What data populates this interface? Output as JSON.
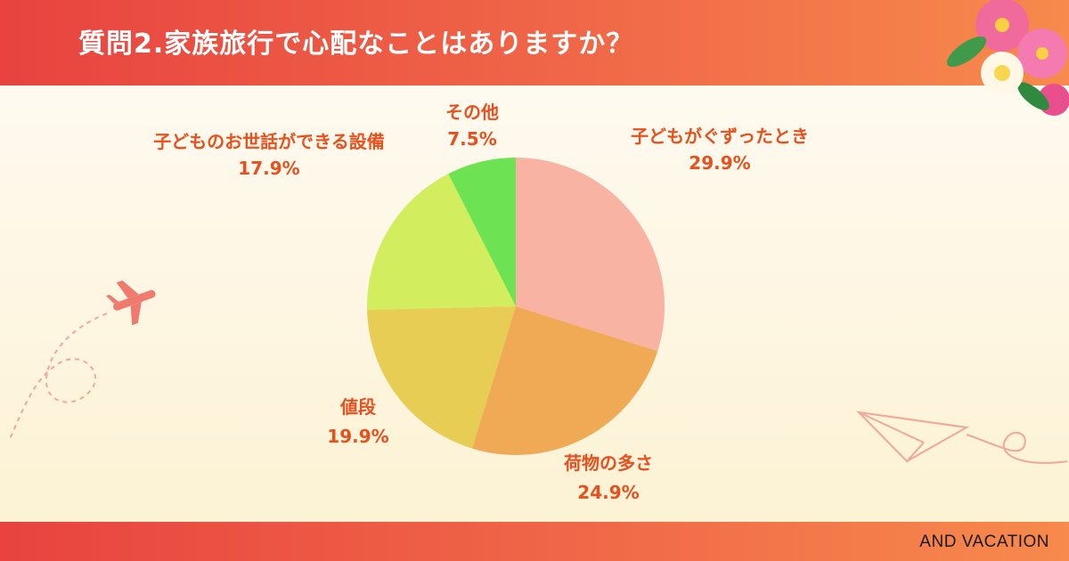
{
  "header": {
    "title": "質問2.家族旅行で心配なことはありますか？"
  },
  "footer": {
    "brand": "AND VACATION"
  },
  "colors": {
    "header": "#e8433f",
    "label": "#e8501e"
  },
  "chart_data": {
    "type": "pie",
    "title": "",
    "start": "12 o'clock",
    "direction": "clockwise",
    "slices": [
      {
        "label": "子どもがぐずったとき",
        "value": 29.9,
        "display": "29.9%",
        "color": "#f8b3a2"
      },
      {
        "label": "荷物の多さ",
        "value": 24.9,
        "display": "24.9%",
        "color": "#f0aa55"
      },
      {
        "label": "値段",
        "value": 19.9,
        "display": "19.9%",
        "color": "#e8cd55"
      },
      {
        "label": "子どものお世話ができる設備",
        "value": 17.9,
        "display": "17.9%",
        "color": "#d2ed5e"
      },
      {
        "label": "その他",
        "value": 7.5,
        "display": "7.5%",
        "color": "#6de353"
      }
    ]
  }
}
